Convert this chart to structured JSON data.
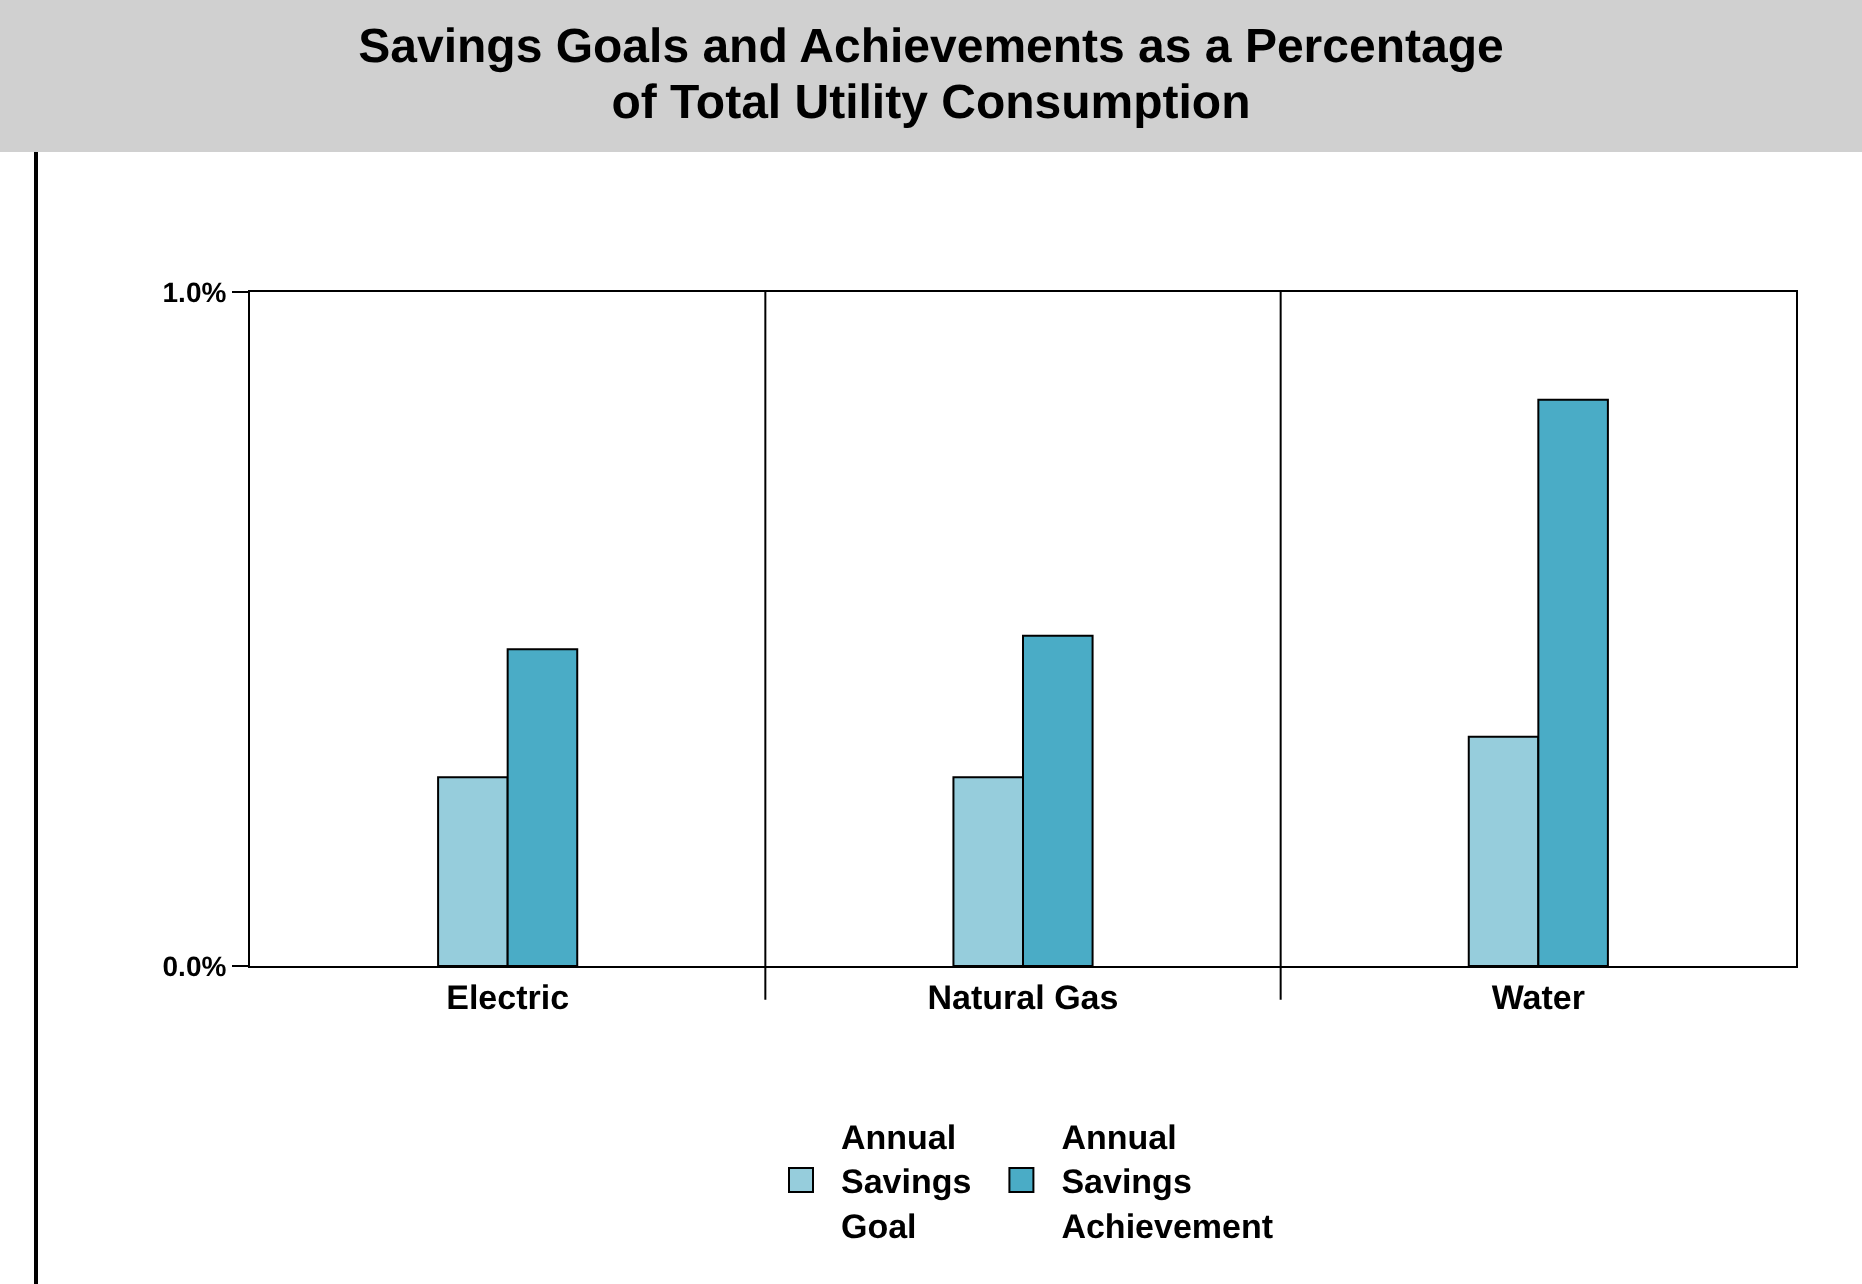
{
  "chart_data": {
    "type": "bar",
    "title": "Savings Goals and Achievements as a Percentage of Total Utility Consumption",
    "categories": [
      "Electric",
      "Natural Gas",
      "Water"
    ],
    "series": [
      {
        "name": "Annual Savings Goal",
        "color": "#96cddc",
        "values": [
          0.28,
          0.28,
          0.34
        ]
      },
      {
        "name": "Annual Savings Achievement",
        "color": "#4aacc6",
        "values": [
          0.47,
          0.49,
          0.84
        ]
      }
    ],
    "ylim": [
      0,
      1
    ],
    "yticks": [
      {
        "value": 0,
        "label": "0.0%"
      },
      {
        "value": 1,
        "label": "1.0%"
      }
    ],
    "grid": "x",
    "legend": "bottom"
  }
}
